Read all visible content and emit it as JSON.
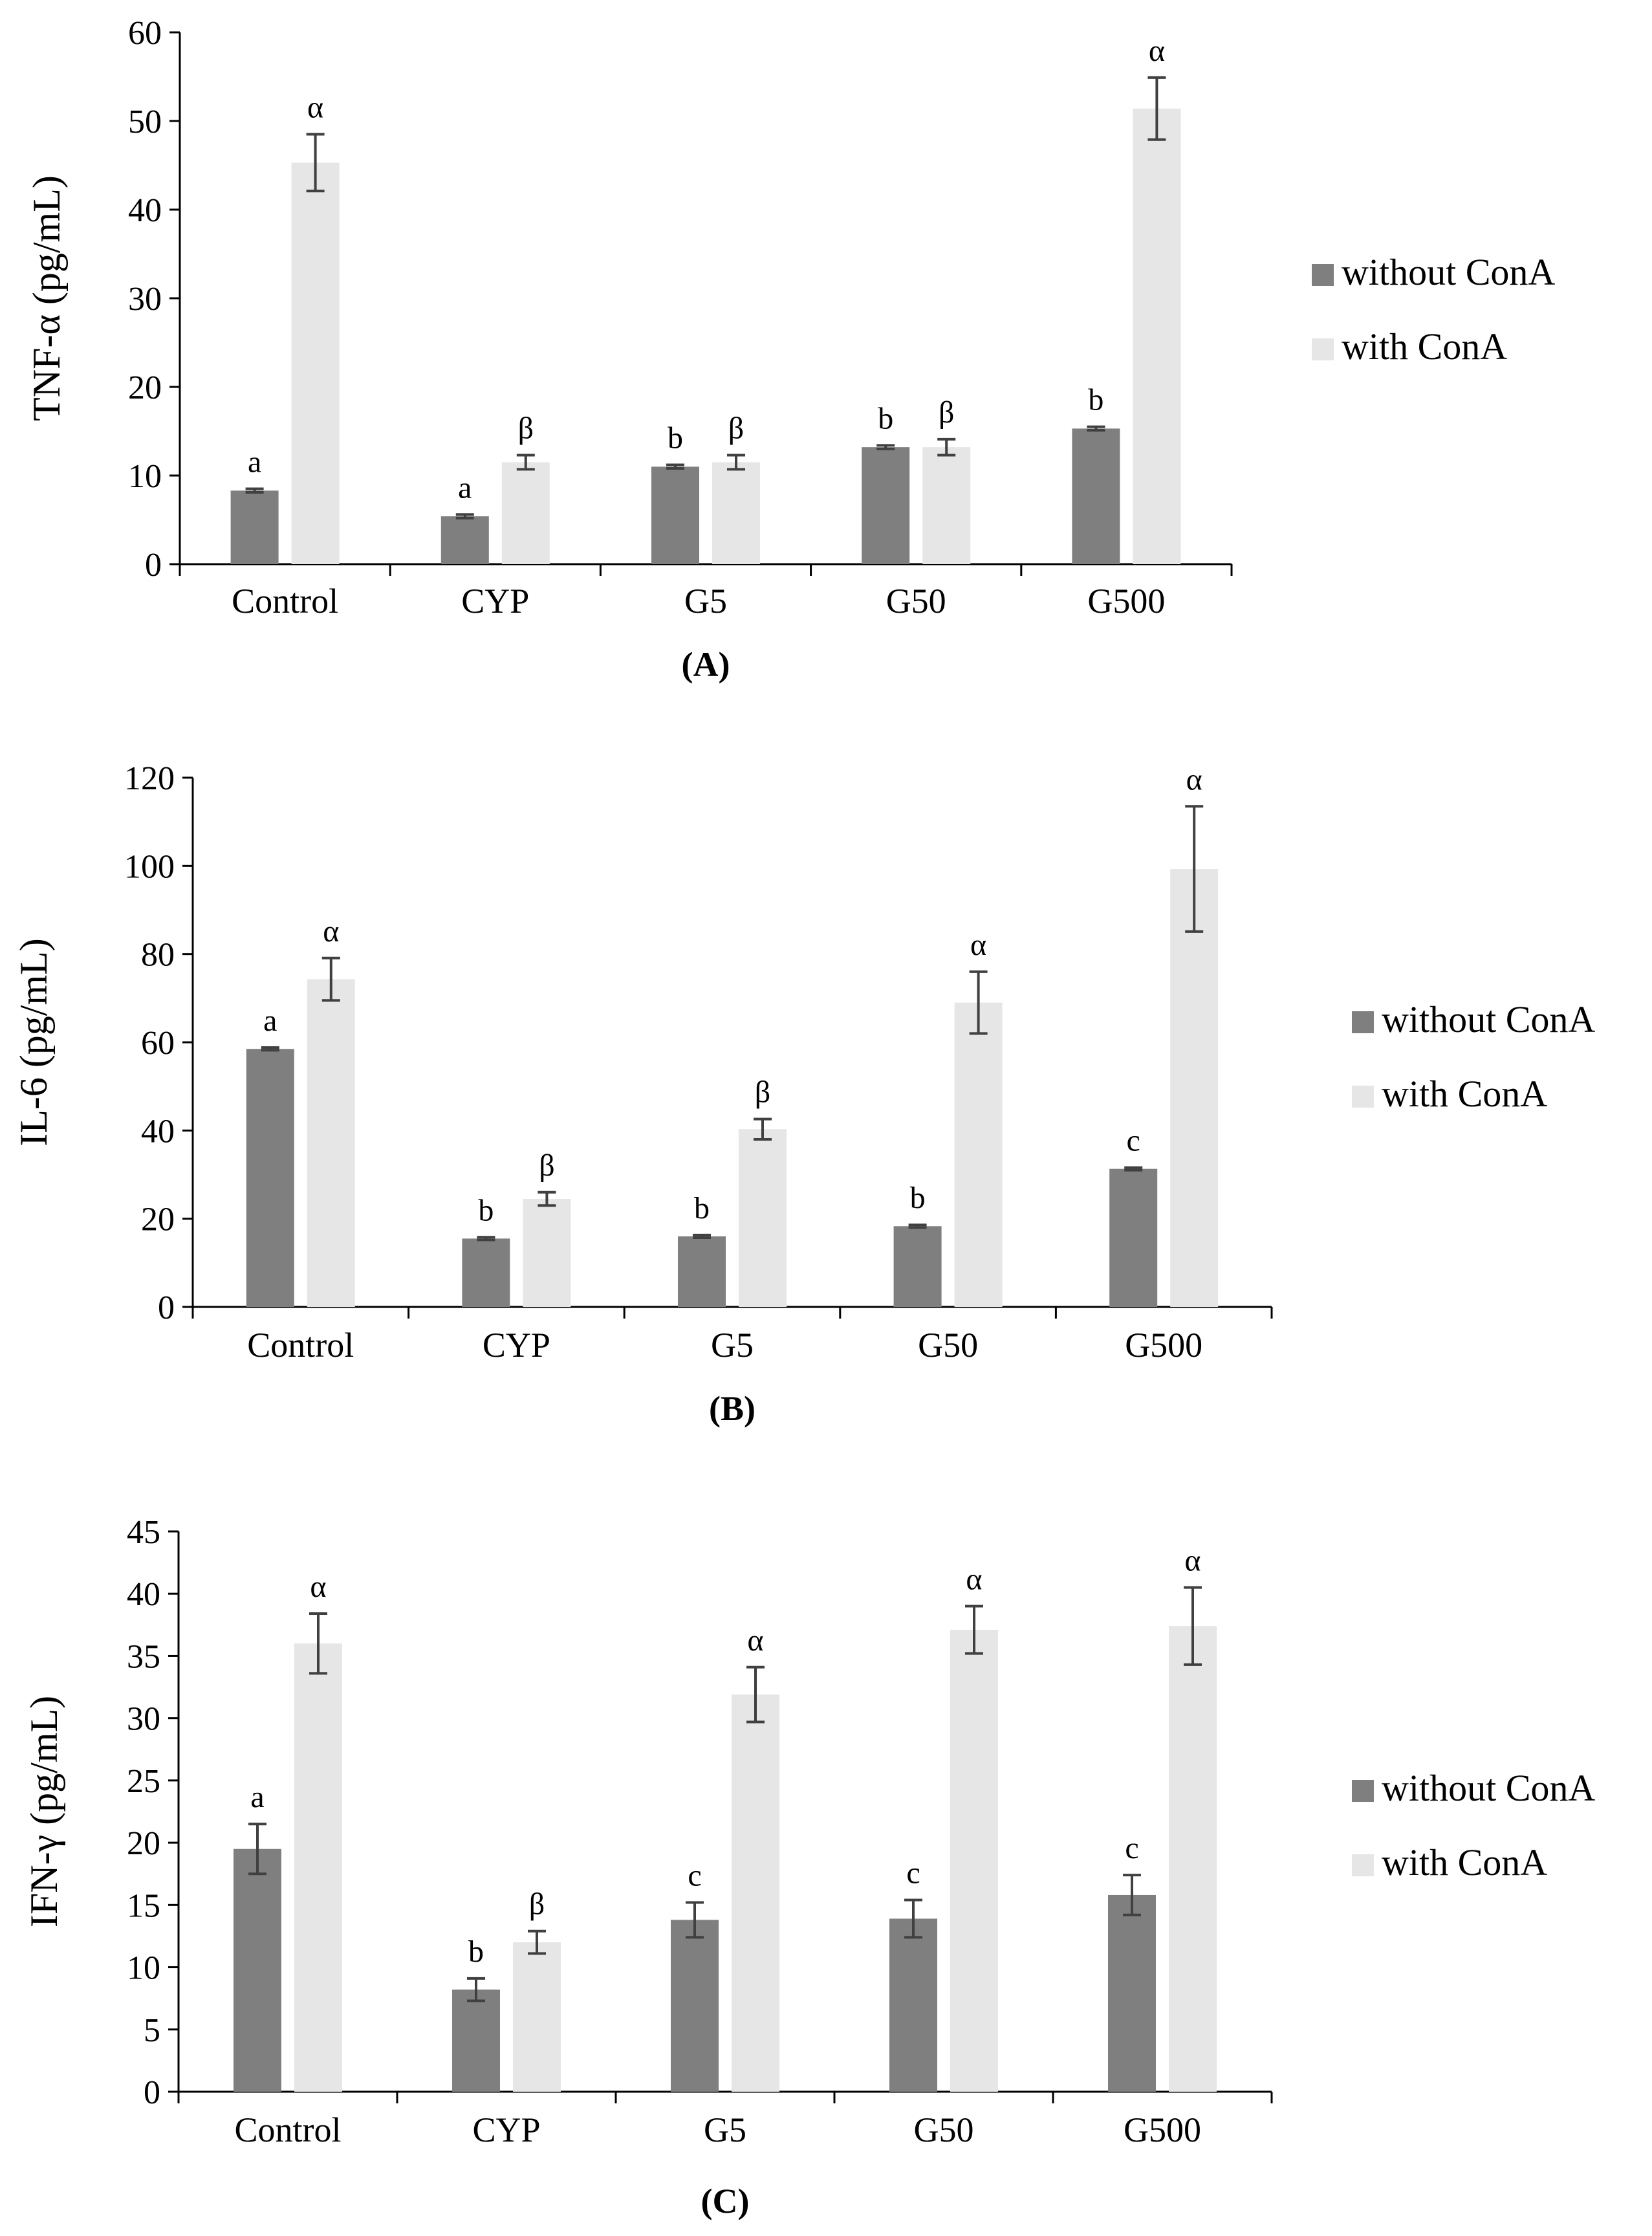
{
  "colors": {
    "without": "#7f7f7f",
    "with": "#e6e6e6",
    "axis": "#000000",
    "error": "#404040"
  },
  "chart_data": [
    {
      "type": "bar",
      "panel_label": "(A)",
      "ylabel": "TNF-α (pg/mL)",
      "ylim": [
        0,
        60
      ],
      "yticks": [
        0,
        10,
        20,
        30,
        40,
        50,
        60
      ],
      "categories": [
        "Control",
        "CYP",
        "G5",
        "G50",
        "G500"
      ],
      "legend_position": "right",
      "series": [
        {
          "name": "without ConA",
          "values": [
            8.3,
            5.4,
            11.0,
            13.2,
            15.3
          ],
          "errors": [
            0.2,
            0.2,
            0.2,
            0.2,
            0.2
          ],
          "labels": [
            "a",
            "a",
            "b",
            "b",
            "b"
          ]
        },
        {
          "name": "with ConA",
          "values": [
            45.3,
            11.5,
            11.5,
            13.2,
            51.4
          ],
          "errors": [
            3.2,
            0.8,
            0.8,
            0.9,
            3.5
          ],
          "labels": [
            "α",
            "β",
            "β",
            "β",
            "α"
          ]
        }
      ]
    },
    {
      "type": "bar",
      "panel_label": "(B)",
      "ylabel": "IL-6 (pg/mL)",
      "ylim": [
        0,
        120
      ],
      "yticks": [
        0,
        20,
        40,
        60,
        80,
        100,
        120
      ],
      "categories": [
        "Control",
        "CYP",
        "G5",
        "G50",
        "G500"
      ],
      "legend_position": "right",
      "series": [
        {
          "name": "without ConA",
          "values": [
            58.5,
            15.5,
            16.0,
            18.3,
            31.3
          ],
          "errors": [
            0.3,
            0.3,
            0.3,
            0.3,
            0.3
          ],
          "labels": [
            "a",
            "b",
            "b",
            "b",
            "c"
          ]
        },
        {
          "name": "with ConA",
          "values": [
            74.3,
            24.5,
            40.3,
            69.0,
            99.3
          ],
          "errors": [
            4.8,
            1.5,
            2.3,
            7.0,
            14.2
          ],
          "labels": [
            "α",
            "β",
            "β",
            "α",
            "α"
          ]
        }
      ]
    },
    {
      "type": "bar",
      "panel_label": "(C)",
      "ylabel": "IFN-γ (pg/mL)",
      "ylim": [
        0,
        45
      ],
      "yticks": [
        0,
        5,
        10,
        15,
        20,
        25,
        30,
        35,
        40,
        45
      ],
      "categories": [
        "Control",
        "CYP",
        "G5",
        "G50",
        "G500"
      ],
      "legend_position": "right",
      "series": [
        {
          "name": "without ConA",
          "values": [
            19.5,
            8.2,
            13.8,
            13.9,
            15.8
          ],
          "errors": [
            2.0,
            0.9,
            1.4,
            1.5,
            1.6
          ],
          "labels": [
            "a",
            "b",
            "c",
            "c",
            "c"
          ]
        },
        {
          "name": "with ConA",
          "values": [
            36.0,
            12.0,
            31.9,
            37.1,
            37.4
          ],
          "errors": [
            2.4,
            0.9,
            2.2,
            1.9,
            3.1
          ],
          "labels": [
            "α",
            "β",
            "α",
            "α",
            "α"
          ]
        }
      ]
    }
  ]
}
